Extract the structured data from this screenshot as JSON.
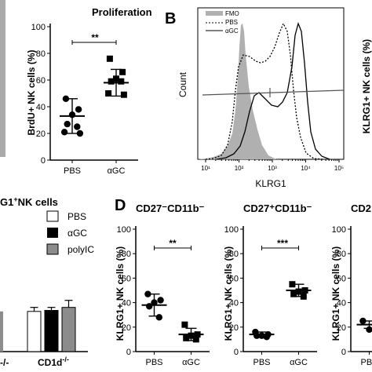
{
  "panels": {
    "proliferation": {
      "title": "Proliferation",
      "ylabel": "BrdU+ NK cells (%)",
      "yticks": [
        "0",
        "20",
        "40",
        "60",
        "80",
        "100"
      ],
      "sig": "**"
    },
    "B": {
      "letter": "B",
      "legend": [
        "FMO",
        "PBS",
        "αGC"
      ],
      "ylabel": "Count",
      "xlabel": "KLRG1",
      "right_ylabel": "KLRG1+ NK cells (%)"
    },
    "C": {
      "title_fragment": "G1",
      "title_sup": "+",
      "title_rest": "NK cells",
      "legend": [
        "PBS",
        "αGC",
        "polyIC"
      ],
      "xlabel_left": "-/-",
      "xlabel_right": "CD1d",
      "xlabel_right_sup": "-/-"
    },
    "D": {
      "letter": "D",
      "sub1_title": "CD27⁻CD11b⁻",
      "sub2_title": "CD27⁺CD11b⁻",
      "sub3_title": "CD2",
      "ylabel": "KLRG1+ NK cells (%)",
      "sub1_sig": "**",
      "sub2_sig": "***",
      "yticks": [
        "0",
        "20",
        "40",
        "60",
        "80",
        "100"
      ]
    }
  },
  "chart_data": [
    {
      "type": "scatter",
      "title": "Proliferation",
      "ylabel": "BrdU+ NK cells (%)",
      "categories": [
        "PBS",
        "αGC"
      ],
      "ylim": [
        0,
        100
      ],
      "series": [
        {
          "values": [
            46,
            38,
            34,
            27,
            25,
            21,
            20
          ]
        },
        {
          "values": [
            76,
            66,
            61,
            59,
            59,
            50,
            49
          ]
        }
      ],
      "mean": [
        33,
        58
      ],
      "sd": [
        13,
        10
      ],
      "annotation": "**"
    },
    {
      "type": "line",
      "xlabel": "KLRG1",
      "ylabel": "Count",
      "xticks": [
        "10¹",
        "10²",
        "10³",
        "10⁴",
        "10⁵"
      ],
      "series": [
        {
          "name": "FMO",
          "style": "filled gray"
        },
        {
          "name": "PBS",
          "style": "dotted"
        },
        {
          "name": "αGC",
          "style": "solid"
        }
      ]
    },
    {
      "type": "bar",
      "title": "G1⁺NK cells",
      "categories": [
        "-/-",
        "CD1d-/-"
      ],
      "series": [
        {
          "name": "PBS",
          "values": [
            null,
            40
          ]
        },
        {
          "name": "αGC",
          "values": [
            null,
            41
          ]
        },
        {
          "name": "polyIC",
          "values": [
            null,
            44
          ]
        }
      ]
    },
    {
      "type": "scatter",
      "title": "CD27⁻CD11b⁻",
      "ylabel": "KLRG1+ NK cells (%)",
      "categories": [
        "PBS",
        "αGC"
      ],
      "ylim": [
        0,
        100
      ],
      "series": [
        {
          "values": [
            47,
            42,
            40,
            37,
            28
          ]
        },
        {
          "values": [
            22,
            14,
            13,
            11,
            10
          ]
        }
      ],
      "mean": [
        38,
        14
      ],
      "sd": [
        9,
        5
      ],
      "annotation": "**"
    },
    {
      "type": "scatter",
      "title": "CD27⁺CD11b⁻",
      "ylabel": "KLRG1+ NK cells (%)",
      "categories": [
        "PBS",
        "αGC"
      ],
      "ylim": [
        0,
        100
      ],
      "series": [
        {
          "values": [
            16,
            14,
            13,
            13,
            12
          ]
        },
        {
          "values": [
            55,
            50,
            49,
            47,
            45
          ]
        }
      ],
      "mean": [
        14,
        50
      ],
      "sd": [
        2,
        5
      ],
      "annotation": "***"
    },
    {
      "type": "scatter",
      "title": "CD2",
      "categories": [
        "PBS"
      ],
      "ylim": [
        0,
        100
      ],
      "series": [
        {
          "values": [
            25,
            22,
            18
          ]
        }
      ],
      "mean": [
        22
      ],
      "sd": [
        3
      ]
    }
  ]
}
